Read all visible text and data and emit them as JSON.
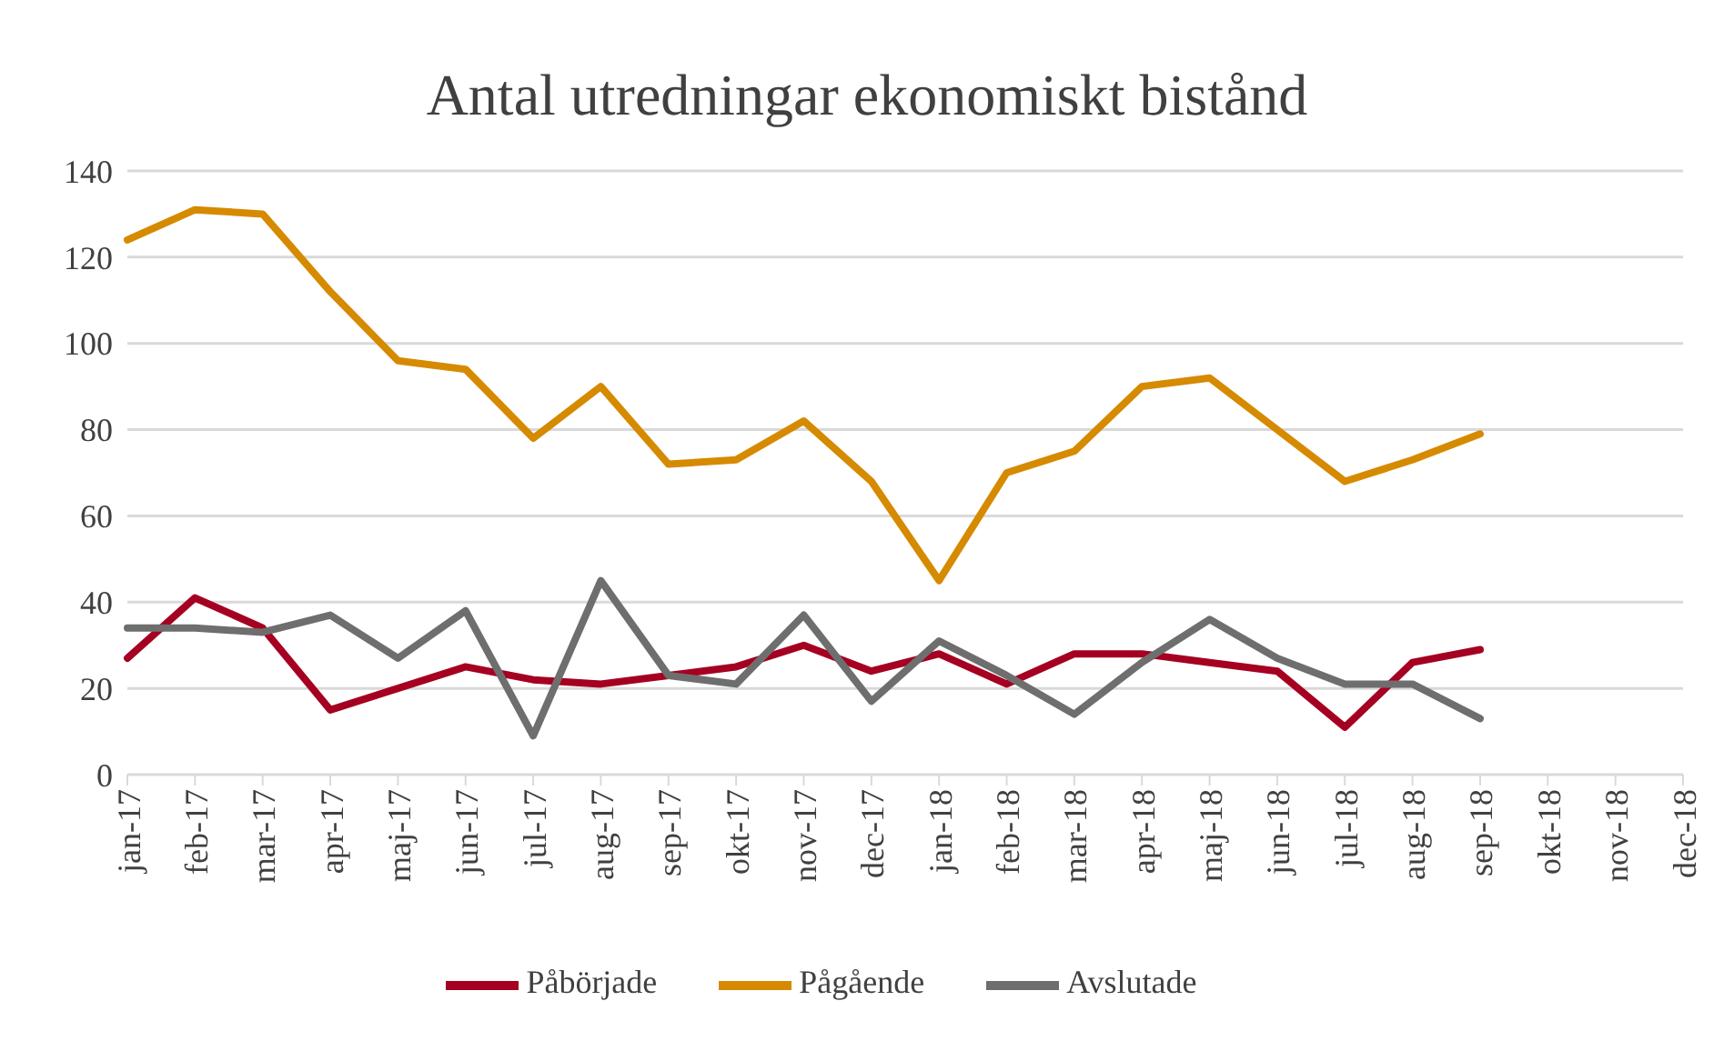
{
  "chart_data": {
    "type": "line",
    "title": "Antal utredningar ekonomiskt bistånd",
    "categories": [
      "jan-17",
      "feb-17",
      "mar-17",
      "apr-17",
      "maj-17",
      "jun-17",
      "jul-17",
      "aug-17",
      "sep-17",
      "okt-17",
      "nov-17",
      "dec-17",
      "jan-18",
      "feb-18",
      "mar-18",
      "apr-18",
      "maj-18",
      "jun-18",
      "jul-18",
      "aug-18",
      "sep-18",
      "okt-18",
      "nov-18",
      "dec-18"
    ],
    "series": [
      {
        "name": "Påbörjade",
        "color": "#a50021",
        "values": [
          27,
          41,
          34,
          15,
          20,
          25,
          22,
          21,
          23,
          25,
          30,
          24,
          28,
          21,
          28,
          28,
          26,
          24,
          11,
          26,
          29,
          null,
          null,
          null
        ]
      },
      {
        "name": "Pågående",
        "color": "#d68a00",
        "values": [
          124,
          131,
          130,
          112,
          96,
          94,
          78,
          90,
          72,
          73,
          82,
          68,
          45,
          70,
          75,
          90,
          92,
          80,
          68,
          73,
          79,
          null,
          null,
          null
        ]
      },
      {
        "name": "Avslutade",
        "color": "#6e6e6e",
        "values": [
          34,
          34,
          33,
          37,
          27,
          38,
          9,
          45,
          23,
          21,
          37,
          17,
          31,
          23,
          14,
          26,
          36,
          27,
          21,
          21,
          13,
          null,
          null,
          null
        ]
      }
    ],
    "ylim": [
      0,
      140
    ],
    "yticks": [
      0,
      20,
      40,
      60,
      80,
      100,
      120,
      140
    ],
    "grid": "y",
    "legend": "bottom",
    "marker": "none",
    "line_style": "solid"
  }
}
